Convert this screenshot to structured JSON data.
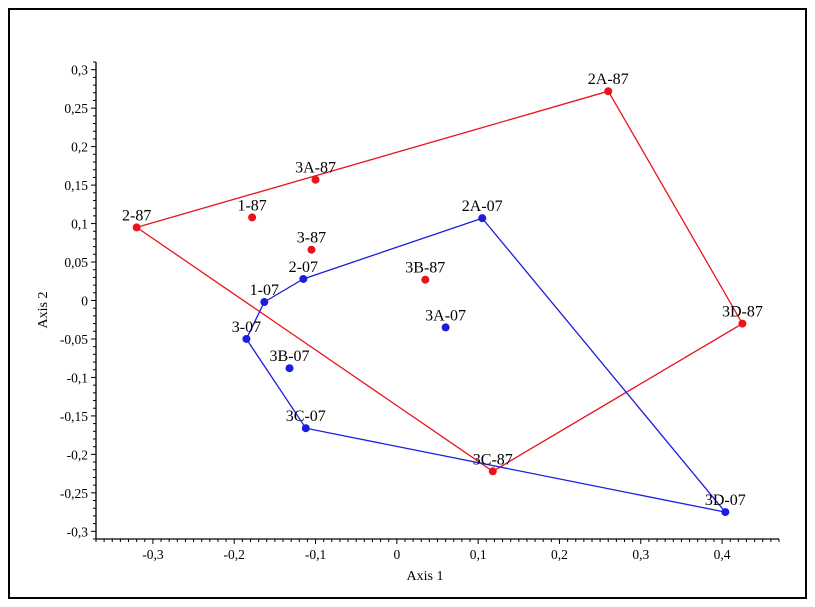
{
  "chart_data": {
    "type": "scatter",
    "xlabel": "Axis 1",
    "ylabel": "Axis 2",
    "xlim": [
      -0.37,
      0.47
    ],
    "ylim": [
      -0.31,
      0.31
    ],
    "x_ticks": [
      -0.3,
      -0.2,
      -0.1,
      0,
      0.1,
      0.2,
      0.3,
      0.4
    ],
    "x_tick_labels": [
      "-0,3",
      "-0,2",
      "-0,1",
      "0",
      "0,1",
      "0,2",
      "0,3",
      "0,4"
    ],
    "y_ticks": [
      0.3,
      0.25,
      0.2,
      0.15,
      0.1,
      0.05,
      0,
      -0.05,
      -0.1,
      -0.15,
      -0.2,
      -0.25,
      -0.3
    ],
    "y_tick_labels": [
      "0,3",
      "0,25",
      "0,2",
      "0,15",
      "0,1",
      "0,05",
      "0",
      "-0,05",
      "-0,1",
      "-0,15",
      "-0,2",
      "-0,25",
      "-0,3"
    ],
    "grid": false,
    "legend": "none",
    "series": [
      {
        "color": "#e8141b",
        "points": [
          {
            "label": "2A-87",
            "x": 0.26,
            "y": 0.272
          },
          {
            "label": "3A-87",
            "x": -0.1,
            "y": 0.157
          },
          {
            "label": "1-87",
            "x": -0.178,
            "y": 0.108
          },
          {
            "label": "2-87",
            "x": -0.32,
            "y": 0.095
          },
          {
            "label": "3-87",
            "x": -0.105,
            "y": 0.066
          },
          {
            "label": "3B-87",
            "x": 0.035,
            "y": 0.027
          },
          {
            "label": "3D-87",
            "x": 0.425,
            "y": -0.03
          },
          {
            "label": "3C-87",
            "x": 0.118,
            "y": -0.222
          }
        ],
        "hull": [
          "2-87",
          "2A-87",
          "3D-87",
          "3C-87"
        ]
      },
      {
        "color": "#1c1ce0",
        "points": [
          {
            "label": "2A-07",
            "x": 0.105,
            "y": 0.107
          },
          {
            "label": "2-07",
            "x": -0.115,
            "y": 0.028
          },
          {
            "label": "1-07",
            "x": -0.163,
            "y": -0.002
          },
          {
            "label": "3A-07",
            "x": 0.06,
            "y": -0.035
          },
          {
            "label": "3-07",
            "x": -0.185,
            "y": -0.05
          },
          {
            "label": "3B-07",
            "x": -0.132,
            "y": -0.088
          },
          {
            "label": "3C-07",
            "x": -0.112,
            "y": -0.166
          },
          {
            "label": "3D-07",
            "x": 0.404,
            "y": -0.275
          }
        ],
        "hull": [
          "1-07",
          "2-07",
          "2A-07",
          "3D-07",
          "3C-07",
          "3-07"
        ]
      }
    ]
  }
}
